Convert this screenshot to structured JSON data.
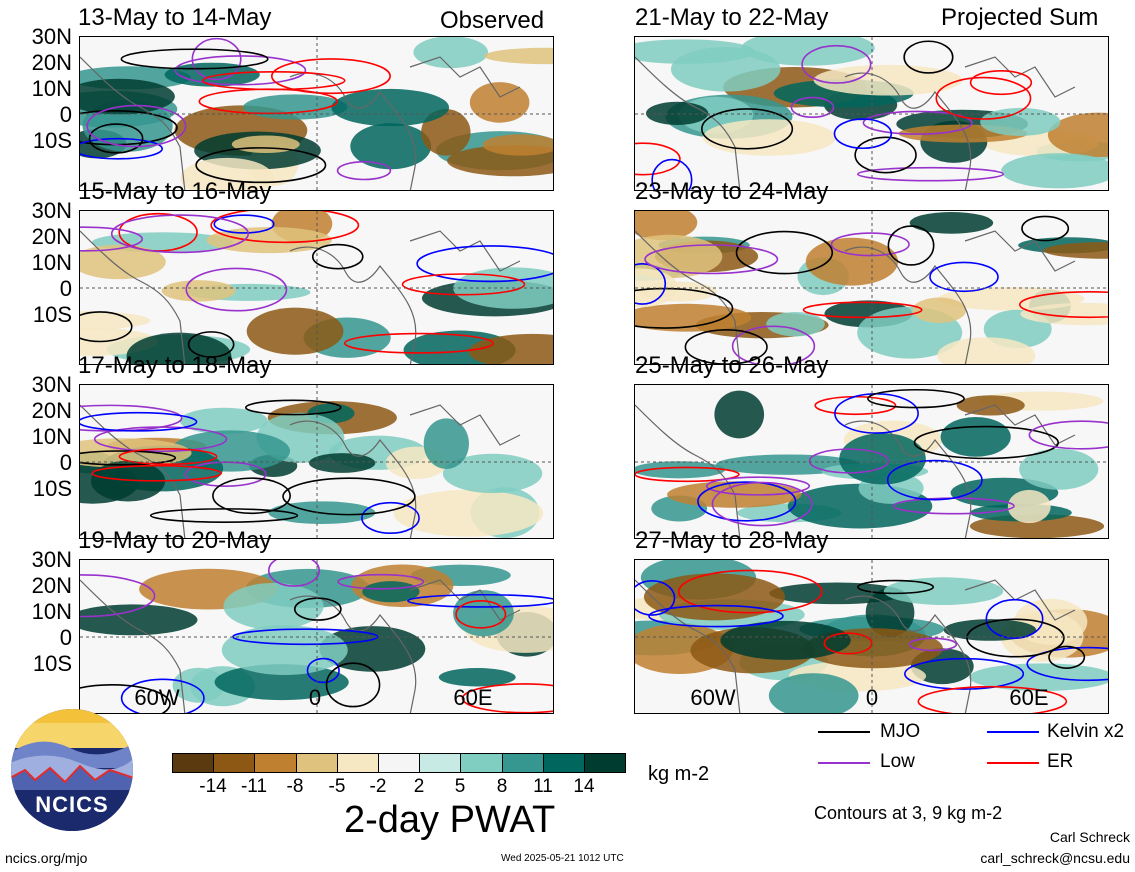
{
  "panels_left": [
    {
      "title": "13-May to 14-May",
      "corner": "Observed"
    },
    {
      "title": "15-May to 16-May",
      "corner": ""
    },
    {
      "title": "17-May to 18-May",
      "corner": ""
    },
    {
      "title": "19-May to 20-May",
      "corner": ""
    }
  ],
  "panels_right": [
    {
      "title": "21-May to 22-May",
      "corner": "Projected Sum"
    },
    {
      "title": "23-May to 24-May",
      "corner": ""
    },
    {
      "title": "25-May to 26-May",
      "corner": ""
    },
    {
      "title": "27-May to 28-May",
      "corner": ""
    }
  ],
  "lat_labels": [
    "30N",
    "20N",
    "10N",
    "0",
    "10S"
  ],
  "lon_labels": [
    "60W",
    "0",
    "60E"
  ],
  "colorbar": {
    "ticks": [
      "-14",
      "-11",
      "-8",
      "-5",
      "-2",
      "2",
      "5",
      "8",
      "11",
      "14"
    ],
    "colors": [
      "#5a3a0e",
      "#8c5814",
      "#bf8030",
      "#dfc27d",
      "#f6e8c3",
      "#f5f5f5",
      "#c7eae5",
      "#80cdc1",
      "#35978f",
      "#01665e",
      "#003c30"
    ],
    "units": "kg m-2",
    "title": "2-day PWAT"
  },
  "legend": {
    "mjo": "MJO",
    "kelvin": "Kelvin x2",
    "low": "Low",
    "er": "ER",
    "colors": {
      "mjo": "#000000",
      "kelvin": "#0000ff",
      "low": "#9932cc",
      "er": "#ff0000"
    },
    "contours_note": "Contours at 3, 9 kg m-2"
  },
  "footer": {
    "logo_text": "NCICS",
    "site": "ncics.org/mjo",
    "timestamp": "Wed 2025-05-21 1012 UTC",
    "author": "Carl Schreck",
    "email": "carl_schreck@ncsu.edu"
  }
}
